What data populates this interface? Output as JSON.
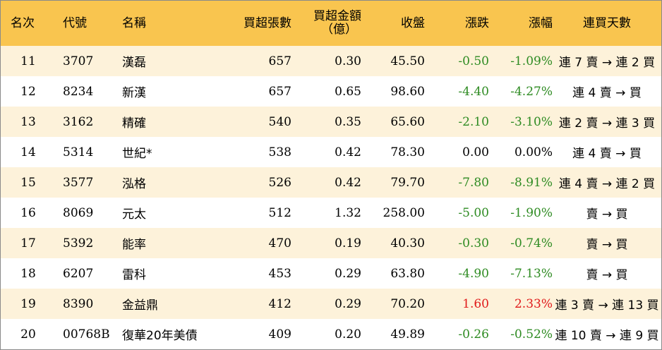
{
  "colors": {
    "header_bg": "#f9c54f",
    "stripe_bg": "#fdf2da",
    "negative": "#2e8b22",
    "positive": "#e01a1a"
  },
  "headers": {
    "rank": "名次",
    "code": "代號",
    "name": "名稱",
    "net_buy_lots": "買超張數",
    "net_buy_amount_line1": "買超金額",
    "net_buy_amount_line2": "（億）",
    "close": "收盤",
    "change": "漲跌",
    "change_pct": "漲幅",
    "consecutive_days": "連買天數"
  },
  "rows": [
    {
      "rank": "11",
      "code": "3707",
      "name": "漢磊",
      "lots": "657",
      "amount": "0.30",
      "close": "45.50",
      "change": "-0.50",
      "pct": "-1.09%",
      "days": "連 7 賣 → 連 2 買",
      "dir": "neg"
    },
    {
      "rank": "12",
      "code": "8234",
      "name": "新漢",
      "lots": "657",
      "amount": "0.65",
      "close": "98.60",
      "change": "-4.40",
      "pct": "-4.27%",
      "days": "連 4 賣 → 買",
      "dir": "neg"
    },
    {
      "rank": "13",
      "code": "3162",
      "name": "精確",
      "lots": "540",
      "amount": "0.35",
      "close": "65.60",
      "change": "-2.10",
      "pct": "-3.10%",
      "days": "連 2 賣 → 連 3 買",
      "dir": "neg"
    },
    {
      "rank": "14",
      "code": "5314",
      "name": "世紀*",
      "lots": "538",
      "amount": "0.42",
      "close": "78.30",
      "change": "0.00",
      "pct": "0.00%",
      "days": "連 4 賣 → 買",
      "dir": "flat"
    },
    {
      "rank": "15",
      "code": "3577",
      "name": "泓格",
      "lots": "526",
      "amount": "0.42",
      "close": "79.70",
      "change": "-7.80",
      "pct": "-8.91%",
      "days": "連 4 賣 → 連 2 買",
      "dir": "neg"
    },
    {
      "rank": "16",
      "code": "8069",
      "name": "元太",
      "lots": "512",
      "amount": "1.32",
      "close": "258.00",
      "change": "-5.00",
      "pct": "-1.90%",
      "days": "賣 → 買",
      "dir": "neg"
    },
    {
      "rank": "17",
      "code": "5392",
      "name": "能率",
      "lots": "470",
      "amount": "0.19",
      "close": "40.30",
      "change": "-0.30",
      "pct": "-0.74%",
      "days": "賣 → 買",
      "dir": "neg"
    },
    {
      "rank": "18",
      "code": "6207",
      "name": "雷科",
      "lots": "453",
      "amount": "0.29",
      "close": "63.80",
      "change": "-4.90",
      "pct": "-7.13%",
      "days": "賣 → 買",
      "dir": "neg"
    },
    {
      "rank": "19",
      "code": "8390",
      "name": "金益鼎",
      "lots": "412",
      "amount": "0.29",
      "close": "70.20",
      "change": "1.60",
      "pct": "2.33%",
      "days": "連 3 賣 → 連 13 買",
      "dir": "pos"
    },
    {
      "rank": "20",
      "code": "00768B",
      "name": "復華20年美債",
      "lots": "409",
      "amount": "0.20",
      "close": "49.89",
      "change": "-0.26",
      "pct": "-0.52%",
      "days": "連 10 賣 → 連 9 買",
      "dir": "neg"
    }
  ]
}
